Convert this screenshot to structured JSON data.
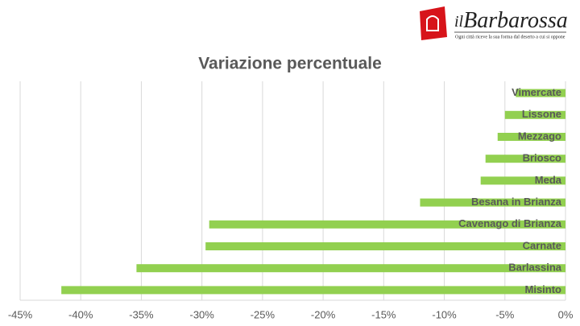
{
  "logo": {
    "prefix": "il",
    "name": "Barbarossa",
    "tagline": "Ogni città riceve la sua forma dal deserto a cui si oppone"
  },
  "chart_data": {
    "type": "hbar",
    "title": "Variazione percentuale",
    "categories": [
      "Vimercate",
      "Lissone",
      "Mezzago",
      "Briosco",
      "Meda",
      "Besana in Brianza",
      "Cavenago di Brianza",
      "Carnate",
      "Barlassina",
      "Misinto"
    ],
    "values": [
      -4.1,
      -5.0,
      -5.6,
      -6.6,
      -7.0,
      -12.0,
      -29.4,
      -29.7,
      -35.4,
      -41.6
    ],
    "color": "#92d050",
    "xlim": [
      -45,
      0
    ],
    "xticks": [
      {
        "value": -45,
        "label": "-45%"
      },
      {
        "value": -40,
        "label": "-40%"
      },
      {
        "value": -35,
        "label": "-35%"
      },
      {
        "value": -30,
        "label": "-30%"
      },
      {
        "value": -25,
        "label": "-25%"
      },
      {
        "value": -20,
        "label": "-20%"
      },
      {
        "value": -15,
        "label": "-15%"
      },
      {
        "value": -10,
        "label": "-10%"
      },
      {
        "value": -5,
        "label": "-5%"
      },
      {
        "value": 0,
        "label": "0%"
      }
    ],
    "grid": true
  }
}
